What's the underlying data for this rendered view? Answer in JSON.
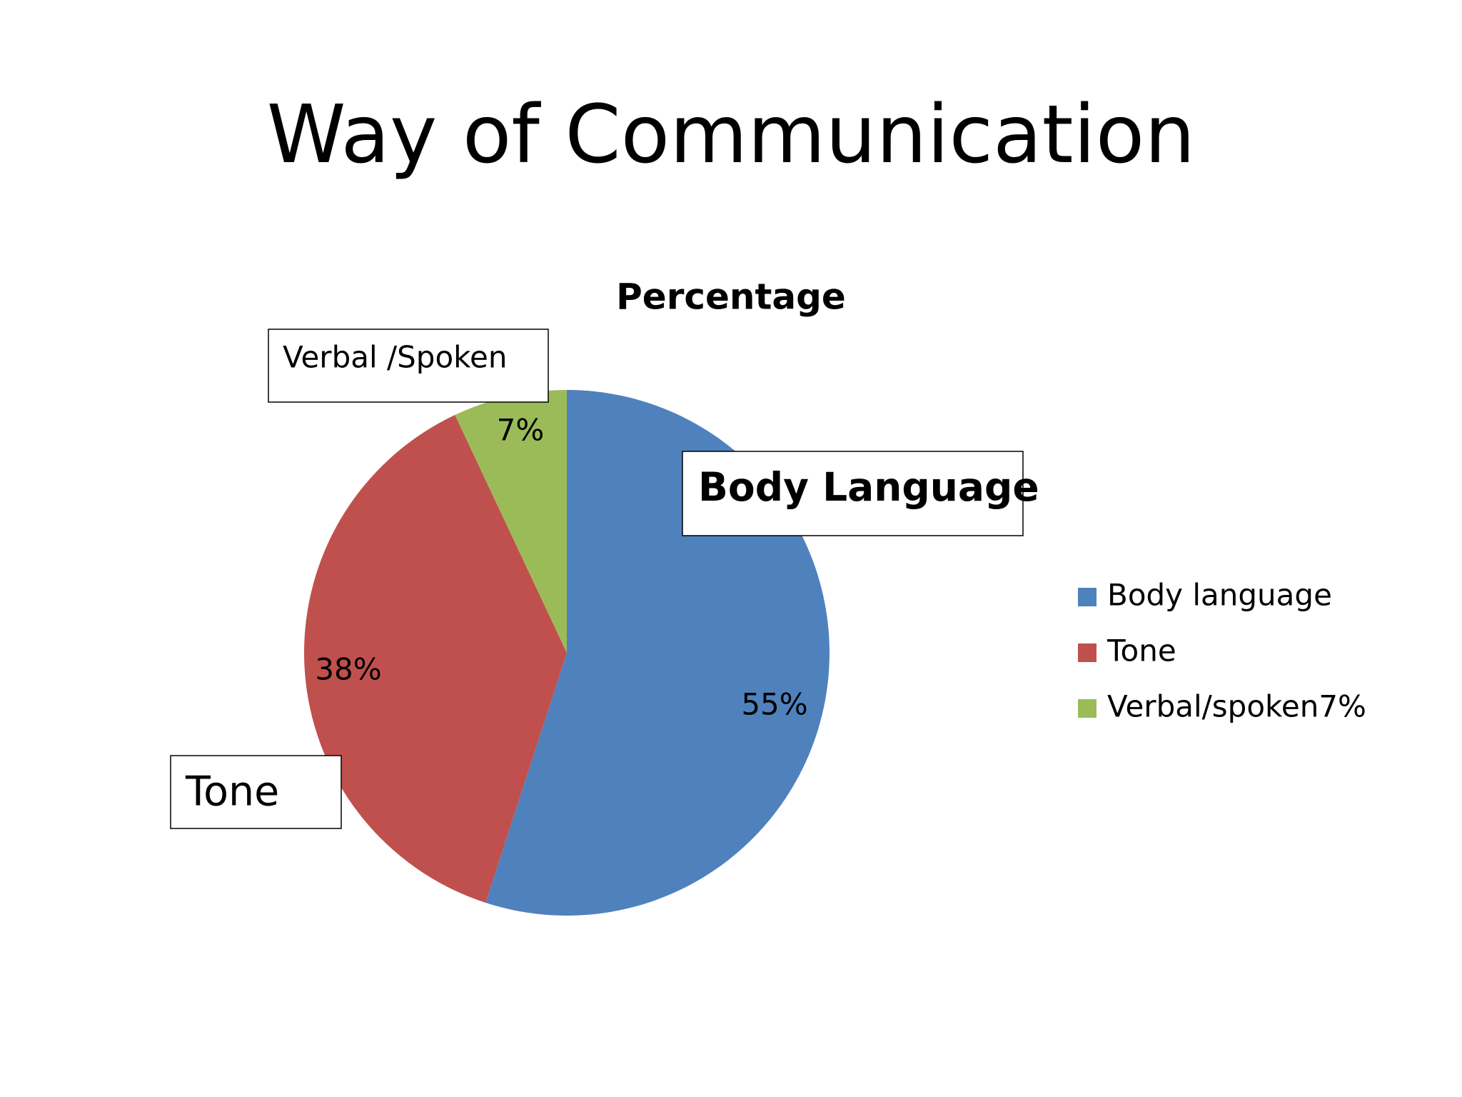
{
  "title": "Way of Communication",
  "chart_data": {
    "type": "pie",
    "title": "Percentage",
    "categories": [
      "Body language",
      "Tone",
      "Verbal/spoken7%"
    ],
    "values": [
      55,
      38,
      7
    ],
    "value_labels": [
      "55%",
      "38%",
      "7%"
    ],
    "colors": [
      "#4f81bd",
      "#c0504d",
      "#9bbb59"
    ],
    "legend": "right",
    "annotations": [
      "Verbal /Spoken",
      "Body Language",
      "Tone"
    ]
  }
}
